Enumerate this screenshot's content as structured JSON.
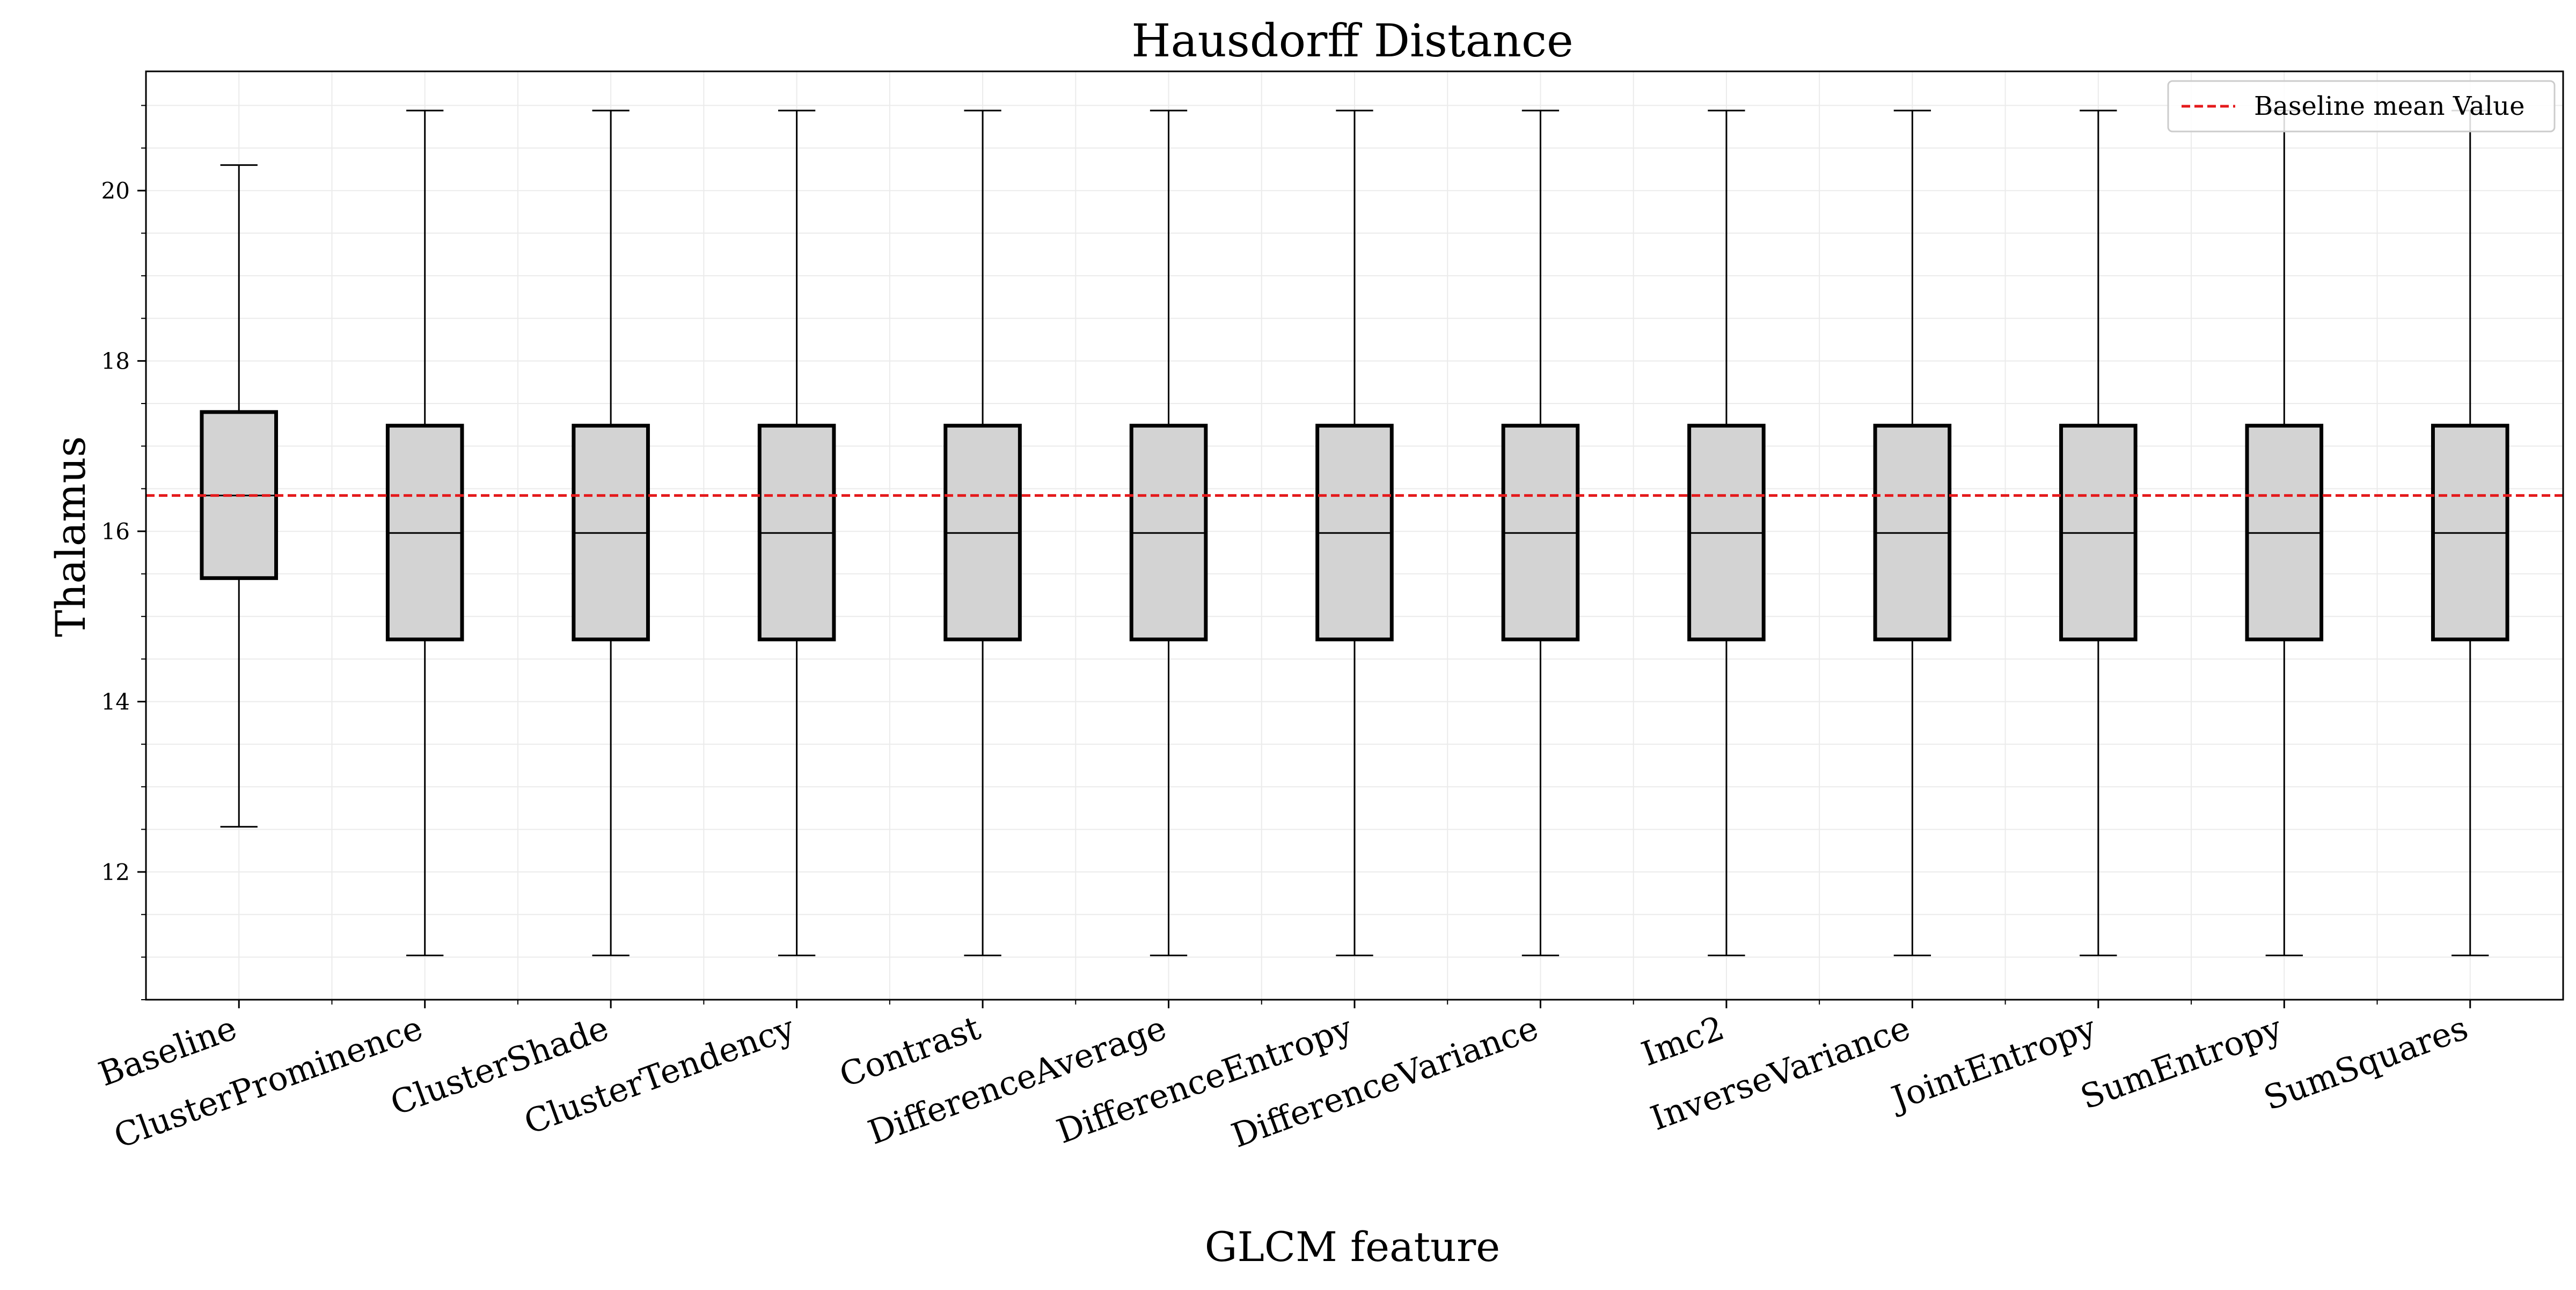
{
  "chart_data": {
    "type": "box",
    "title": "Hausdorff Distance",
    "xlabel": "GLCM feature",
    "ylabel": "Thalamus",
    "ylim": [
      10.5,
      21.4
    ],
    "yticks": [
      12,
      14,
      16,
      18,
      20
    ],
    "grid": true,
    "legend_position": "top-right",
    "categories": [
      "Baseline",
      "ClusterProminence",
      "ClusterShade",
      "ClusterTendency",
      "Contrast",
      "DifferenceAverage",
      "DifferenceEntropy",
      "DifferenceVariance",
      "Imc2",
      "InverseVariance",
      "JointEntropy",
      "SumEntropy",
      "SumSquares"
    ],
    "boxes": [
      {
        "whisker_low": 12.53,
        "q1": 15.45,
        "median": 16.42,
        "q3": 17.4,
        "whisker_high": 20.3
      },
      {
        "whisker_low": 11.02,
        "q1": 14.73,
        "median": 15.98,
        "q3": 17.24,
        "whisker_high": 20.94
      },
      {
        "whisker_low": 11.02,
        "q1": 14.73,
        "median": 15.98,
        "q3": 17.24,
        "whisker_high": 20.94
      },
      {
        "whisker_low": 11.02,
        "q1": 14.73,
        "median": 15.98,
        "q3": 17.24,
        "whisker_high": 20.94
      },
      {
        "whisker_low": 11.02,
        "q1": 14.73,
        "median": 15.98,
        "q3": 17.24,
        "whisker_high": 20.94
      },
      {
        "whisker_low": 11.02,
        "q1": 14.73,
        "median": 15.98,
        "q3": 17.24,
        "whisker_high": 20.94
      },
      {
        "whisker_low": 11.02,
        "q1": 14.73,
        "median": 15.98,
        "q3": 17.24,
        "whisker_high": 20.94
      },
      {
        "whisker_low": 11.02,
        "q1": 14.73,
        "median": 15.98,
        "q3": 17.24,
        "whisker_high": 20.94
      },
      {
        "whisker_low": 11.02,
        "q1": 14.73,
        "median": 15.98,
        "q3": 17.24,
        "whisker_high": 20.94
      },
      {
        "whisker_low": 11.02,
        "q1": 14.73,
        "median": 15.98,
        "q3": 17.24,
        "whisker_high": 20.94
      },
      {
        "whisker_low": 11.02,
        "q1": 14.73,
        "median": 15.98,
        "q3": 17.24,
        "whisker_high": 20.94
      },
      {
        "whisker_low": 11.02,
        "q1": 14.73,
        "median": 15.98,
        "q3": 17.24,
        "whisker_high": 20.94
      },
      {
        "whisker_low": 11.02,
        "q1": 14.73,
        "median": 15.98,
        "q3": 17.24,
        "whisker_high": 20.94
      }
    ],
    "reference_line": {
      "label": "Baseline mean Value",
      "value": 16.42,
      "style": "dashed"
    },
    "colors": {
      "box_fill": "#d3d3d3",
      "box_edge": "#000000",
      "reference_line": "#e41a1c",
      "grid": "#ebebeb"
    }
  }
}
